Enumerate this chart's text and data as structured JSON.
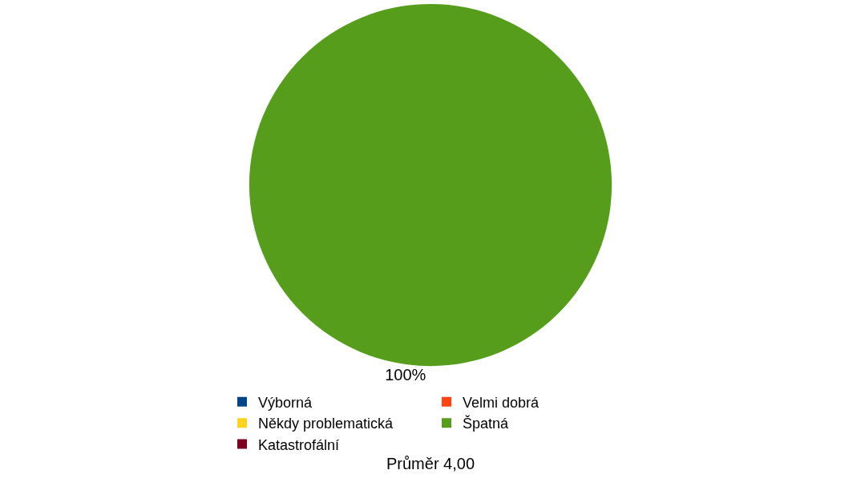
{
  "chart_data": {
    "type": "pie",
    "categories": [
      "Výborná",
      "Velmi dobrá",
      "Někdy problematická",
      "Špatná",
      "Katastrofální"
    ],
    "values": [
      0,
      0,
      0,
      100,
      0
    ],
    "colors": [
      "#004586",
      "#ff420e",
      "#ffd320",
      "#579d1c",
      "#7e0021"
    ],
    "value_labels": [
      null,
      null,
      null,
      "100%",
      null
    ],
    "legend": "bottom",
    "annotations": [
      "Průměr 4,00"
    ]
  }
}
